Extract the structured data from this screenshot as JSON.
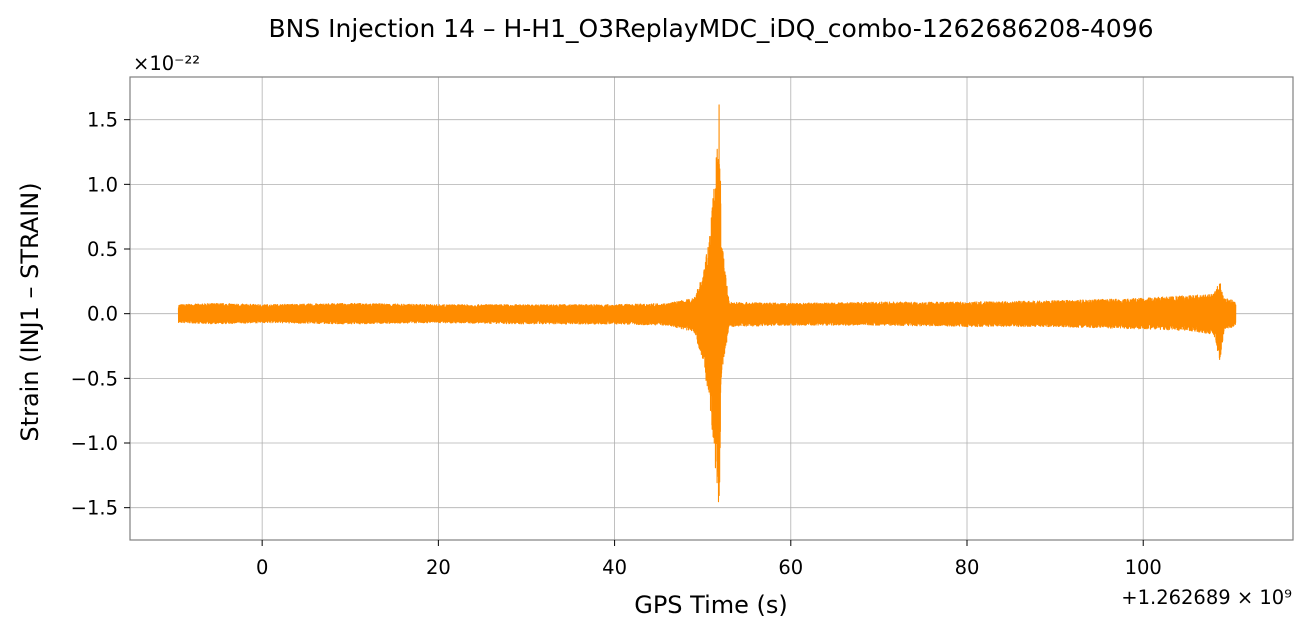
{
  "chart_data": {
    "type": "line",
    "title": "BNS Injection 14 – H-H1_O3ReplayMDC_iDQ_combo-1262686208-4096",
    "xlabel": "GPS Time (s)",
    "ylabel": "Strain (INJ1 – STRAIN)",
    "x_offset_label": "+1.262689 × 10⁹",
    "y_scale_label": "×10⁻²²",
    "xlim": [
      -15,
      117
    ],
    "ylim": [
      -1.75,
      1.83
    ],
    "x_ticks": [
      0,
      20,
      40,
      60,
      80,
      100
    ],
    "y_ticks": [
      -1.5,
      -1.0,
      -0.5,
      0.0,
      0.5,
      1.0,
      1.5
    ],
    "x_tick_labels": [
      "0",
      "20",
      "40",
      "60",
      "80",
      "100"
    ],
    "y_tick_labels": [
      "−1.5",
      "−1.0",
      "−0.5",
      "0.0",
      "0.5",
      "1.0",
      "1.5"
    ],
    "grid": true,
    "series_color": "#ff8c00",
    "series": [
      {
        "x_range": [
          -9.5,
          110.5
        ],
        "envelope": {
          "x": [
            -9.5,
            -5,
            0,
            10,
            20,
            30,
            40,
            46,
            49,
            50,
            50.8,
            51.3,
            51.7,
            51.9,
            52.1,
            53,
            60,
            70,
            80,
            90,
            100,
            105,
            108,
            108.7,
            109.2,
            110.5
          ],
          "upper": [
            0.07,
            0.08,
            0.07,
            0.08,
            0.07,
            0.07,
            0.07,
            0.08,
            0.12,
            0.3,
            0.6,
            1.0,
            1.45,
            1.68,
            0.6,
            0.09,
            0.08,
            0.09,
            0.09,
            0.1,
            0.12,
            0.14,
            0.15,
            0.25,
            0.12,
            0.1
          ],
          "lower": [
            -0.07,
            -0.08,
            -0.07,
            -0.08,
            -0.07,
            -0.08,
            -0.08,
            -0.09,
            -0.14,
            -0.35,
            -0.7,
            -1.1,
            -1.4,
            -1.58,
            -0.5,
            -0.1,
            -0.09,
            -0.09,
            -0.1,
            -0.1,
            -0.12,
            -0.13,
            -0.16,
            -0.37,
            -0.12,
            -0.1
          ]
        }
      }
    ]
  }
}
